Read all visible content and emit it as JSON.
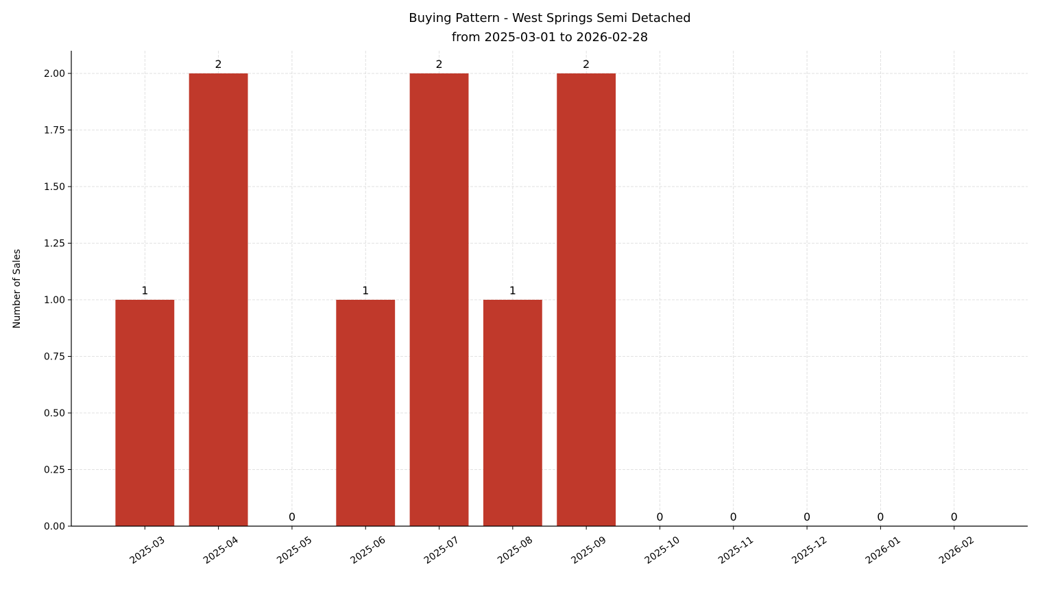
{
  "chart_data": {
    "type": "bar",
    "title": "Buying Pattern - West Springs Semi Detached",
    "subtitle": "from 2025-03-01 to 2026-02-28",
    "y_label": "Number of Sales",
    "categories": [
      "2025-03",
      "2025-04",
      "2025-05",
      "2025-06",
      "2025-07",
      "2025-08",
      "2025-09",
      "2025-10",
      "2025-11",
      "2025-12",
      "2026-01",
      "2026-02"
    ],
    "values": [
      1,
      2,
      0,
      1,
      2,
      1,
      2,
      0,
      0,
      0,
      0,
      0
    ],
    "color": "#c0392b",
    "ylim": [
      0,
      2.1
    ],
    "yticks": [
      {
        "value": 0,
        "label": "0.00"
      },
      {
        "value": 0.25,
        "label": "0.25"
      },
      {
        "value": 0.5,
        "label": "0.50"
      },
      {
        "value": 0.75,
        "label": "0.75"
      },
      {
        "value": 1,
        "label": "1.00"
      },
      {
        "value": 1.25,
        "label": "1.25"
      },
      {
        "value": 1.5,
        "label": "1.50"
      },
      {
        "value": 1.75,
        "label": "1.75"
      },
      {
        "value": 2,
        "label": "2.00"
      }
    ],
    "grid": true
  }
}
